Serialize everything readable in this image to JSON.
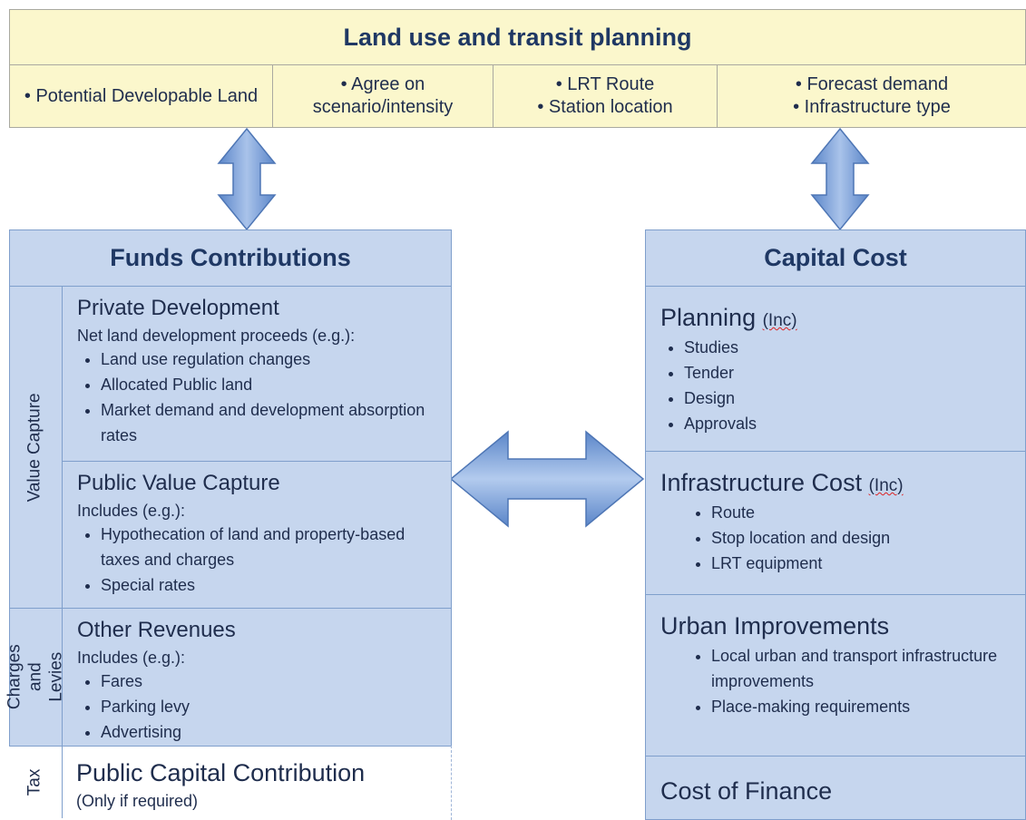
{
  "header": {
    "title": "Land use and transit planning",
    "cells": [
      [
        "• Potential Developable Land"
      ],
      [
        "• Agree on scenario/intensity"
      ],
      [
        "• LRT Route",
        "• Station location"
      ],
      [
        "• Forecast demand",
        "• Infrastructure type"
      ]
    ]
  },
  "funds": {
    "title": "Funds Contributions",
    "groups": [
      {
        "label": "Value Capture"
      },
      {
        "label": "Charges and Levies"
      },
      {
        "label": "Tax"
      }
    ],
    "sections": [
      {
        "title": "Private Development",
        "subtitle": "Net land development proceeds (e.g.):",
        "bullets": [
          "Land use regulation changes",
          "Allocated Public land",
          "Market demand and development absorption rates"
        ]
      },
      {
        "title": "Public Value Capture",
        "subtitle": "Includes (e.g.):",
        "bullets": [
          "Hypothecation of land and property-based taxes and charges",
          "Special rates"
        ]
      },
      {
        "title": "Other Revenues",
        "subtitle": "Includes (e.g.):",
        "bullets": [
          "Fares",
          "Parking levy",
          "Advertising"
        ]
      },
      {
        "title": "Public Capital Contribution",
        "subtitle": "(Only if required)",
        "bullets": []
      }
    ]
  },
  "cost": {
    "title": "Capital Cost",
    "sections": [
      {
        "title": "Planning",
        "note": "(Inc)",
        "bullets": [
          "Studies",
          "Tender",
          "Design",
          "Approvals"
        ]
      },
      {
        "title": "Infrastructure Cost",
        "note": "(Inc)",
        "bullets": [
          "Route",
          "Stop location and design",
          "LRT equipment"
        ]
      },
      {
        "title": "Urban Improvements",
        "bullets": [
          "Local urban and transport infrastructure improvements",
          "Place-making requirements"
        ]
      },
      {
        "title": "Cost of Finance",
        "bullets": []
      }
    ]
  }
}
